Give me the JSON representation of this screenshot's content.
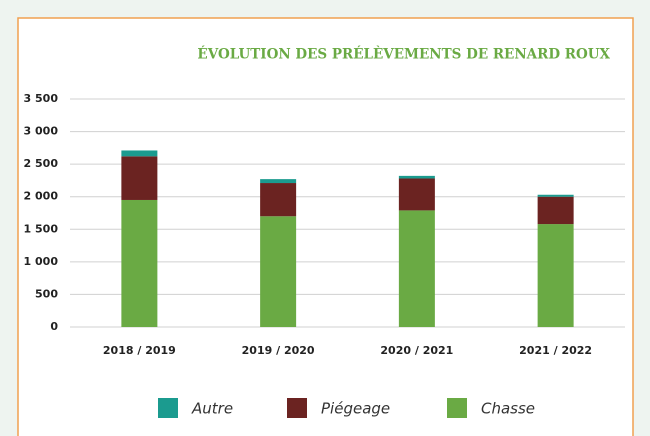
{
  "chart_data": {
    "type": "bar",
    "stacked": true,
    "title": "ÉVOLUTION DES PRÉLÈVEMENTS DE RENARD ROUX",
    "categories": [
      "2018 / 2019",
      "2019 / 2020",
      "2020 / 2021",
      "2021 / 2022"
    ],
    "series": [
      {
        "name": "Chasse",
        "color": "#6aaa44",
        "values": [
          1950,
          1700,
          1790,
          1580
        ]
      },
      {
        "name": "Piégeage",
        "color": "#6b2321",
        "values": [
          670,
          510,
          490,
          420
        ]
      },
      {
        "name": "Autre",
        "color": "#1b9b8f",
        "values": [
          90,
          60,
          40,
          30
        ]
      }
    ],
    "ylim": [
      0,
      3500
    ],
    "yticks": [
      0,
      500,
      {
        "value": 1000,
        "label": "1 000"
      },
      {
        "value": 1500,
        "label": "1 500"
      },
      {
        "value": 2000,
        "label": "2 000"
      },
      {
        "value": 2500,
        "label": "2 500"
      },
      {
        "value": 3000,
        "label": "3 000"
      },
      {
        "value": 3500,
        "label": "3 500"
      }
    ],
    "grid": true
  }
}
